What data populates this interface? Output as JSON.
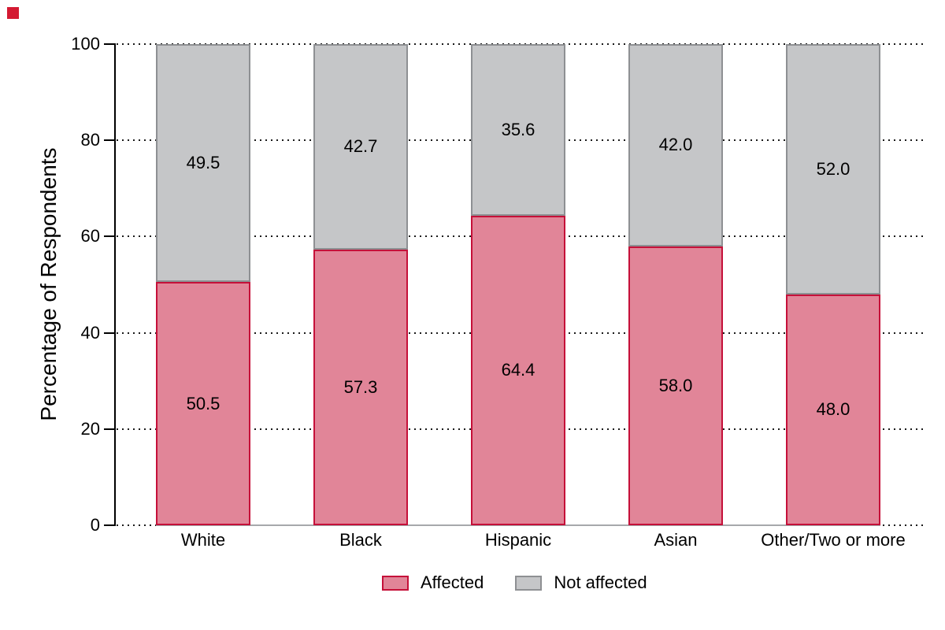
{
  "corner_marker": {
    "color": "#d41a32"
  },
  "chart_data": {
    "type": "bar",
    "subtype": "stacked",
    "title": "",
    "xlabel": "",
    "ylabel": "Percentage of Respondents",
    "categories": [
      "White",
      "Black",
      "Hispanic",
      "Asian",
      "Other/Two or more"
    ],
    "series": [
      {
        "name": "Affected",
        "values": [
          50.5,
          57.3,
          64.4,
          58.0,
          48.0
        ],
        "labels": [
          "50.5",
          "57.3",
          "64.4",
          "58.0",
          "48.0"
        ],
        "fill": "#e18598",
        "border": "#c51039"
      },
      {
        "name": "Not affected",
        "values": [
          49.5,
          42.7,
          35.6,
          42.0,
          52.0
        ],
        "labels": [
          "49.5",
          "42.7",
          "35.6",
          "42.0",
          "52.0"
        ],
        "fill": "#c5c6c8",
        "border": "#8e9093"
      }
    ],
    "ylim": [
      0,
      100
    ],
    "yticks": [
      0,
      20,
      40,
      60,
      80,
      100
    ],
    "ytick_labels": [
      "0",
      "20",
      "40",
      "60",
      "80",
      "100"
    ],
    "grid": "dotted-horizontal",
    "legend_position": "bottom-center",
    "legend": [
      {
        "label": "Affected",
        "fill": "#e18598",
        "border": "#c51039"
      },
      {
        "label": "Not affected",
        "fill": "#c5c6c8",
        "border": "#8e9093"
      }
    ]
  }
}
